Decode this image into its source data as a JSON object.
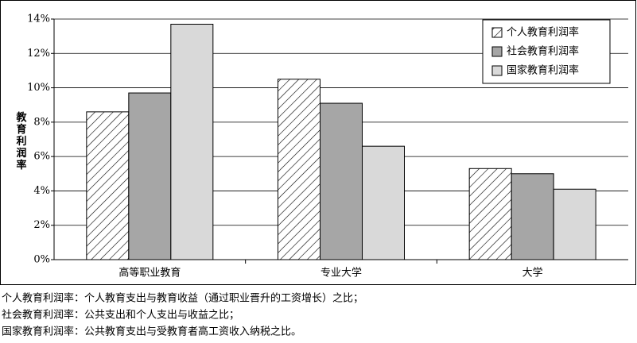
{
  "chart_data": {
    "type": "bar",
    "y_label": "教育利润率",
    "categories": [
      "高等职业教育",
      "专业大学",
      "大学"
    ],
    "series": [
      {
        "name": "个人教育利润率",
        "color": "#ffffff",
        "pattern": "hatch",
        "values": [
          8.6,
          10.5,
          5.3
        ]
      },
      {
        "name": "社会教育利润率",
        "color": "#a6a6a6",
        "values": [
          9.7,
          9.1,
          5.0
        ]
      },
      {
        "name": "国家教育利润率",
        "color": "#d9d9d9",
        "values": [
          13.7,
          6.6,
          4.1
        ]
      }
    ],
    "ylim": [
      0,
      14
    ],
    "yticks": [
      {
        "value": 0,
        "label": "0%"
      },
      {
        "value": 2,
        "label": "2%"
      },
      {
        "value": 4,
        "label": "4%"
      },
      {
        "value": 6,
        "label": "6%"
      },
      {
        "value": 8,
        "label": "8%"
      },
      {
        "value": 10,
        "label": "10%"
      },
      {
        "value": 12,
        "label": "12%"
      },
      {
        "value": 14,
        "label": "14%"
      }
    ],
    "grid": true,
    "legend": "top-right",
    "notes": [
      "个人教育利润率：个人教育支出与教育收益（通过职业晋升的工资增长）之比；",
      "社会教育利润率：公共支出和个人支出与收益之比；",
      "国家教育利润率：公共教育支出与受教育者高工资收入纳税之比。"
    ]
  }
}
